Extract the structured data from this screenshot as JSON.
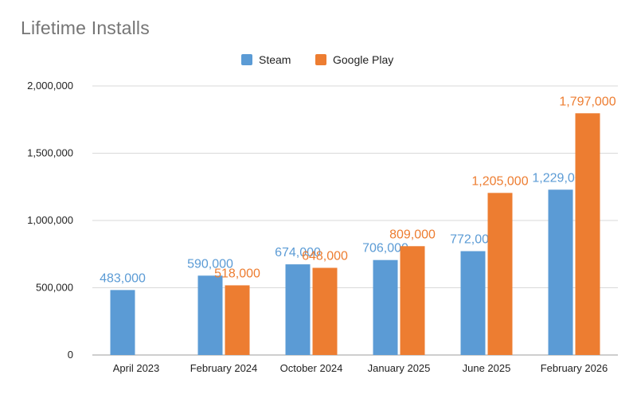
{
  "chart_data": {
    "type": "bar",
    "title": "Lifetime Installs",
    "xlabel": "",
    "ylabel": "",
    "categories": [
      "April 2023",
      "February 2024",
      "October 2024",
      "January 2025",
      "June 2025",
      "February 2026"
    ],
    "series": [
      {
        "name": "Steam",
        "color": "#5B9BD5",
        "values": [
          483000,
          590000,
          674000,
          706000,
          772000,
          1229000
        ],
        "labels": [
          "483,000",
          "590,000",
          "674,000",
          "706,000",
          "772,000",
          "1,229,000"
        ]
      },
      {
        "name": "Google Play",
        "color": "#ED7D31",
        "values": [
          null,
          518000,
          648000,
          809000,
          1205000,
          1797000
        ],
        "labels": [
          "",
          "518,000",
          "648,000",
          "809,000",
          "1,205,000",
          "1,797,000"
        ]
      }
    ],
    "ylim": [
      0,
      2000000
    ],
    "yticks": [
      0,
      500000,
      1000000,
      1500000,
      2000000
    ],
    "ytick_labels": [
      "0",
      "500,000",
      "1,000,000",
      "1,500,000",
      "2,000,000"
    ],
    "grid": true,
    "legend_position": "top-center"
  }
}
